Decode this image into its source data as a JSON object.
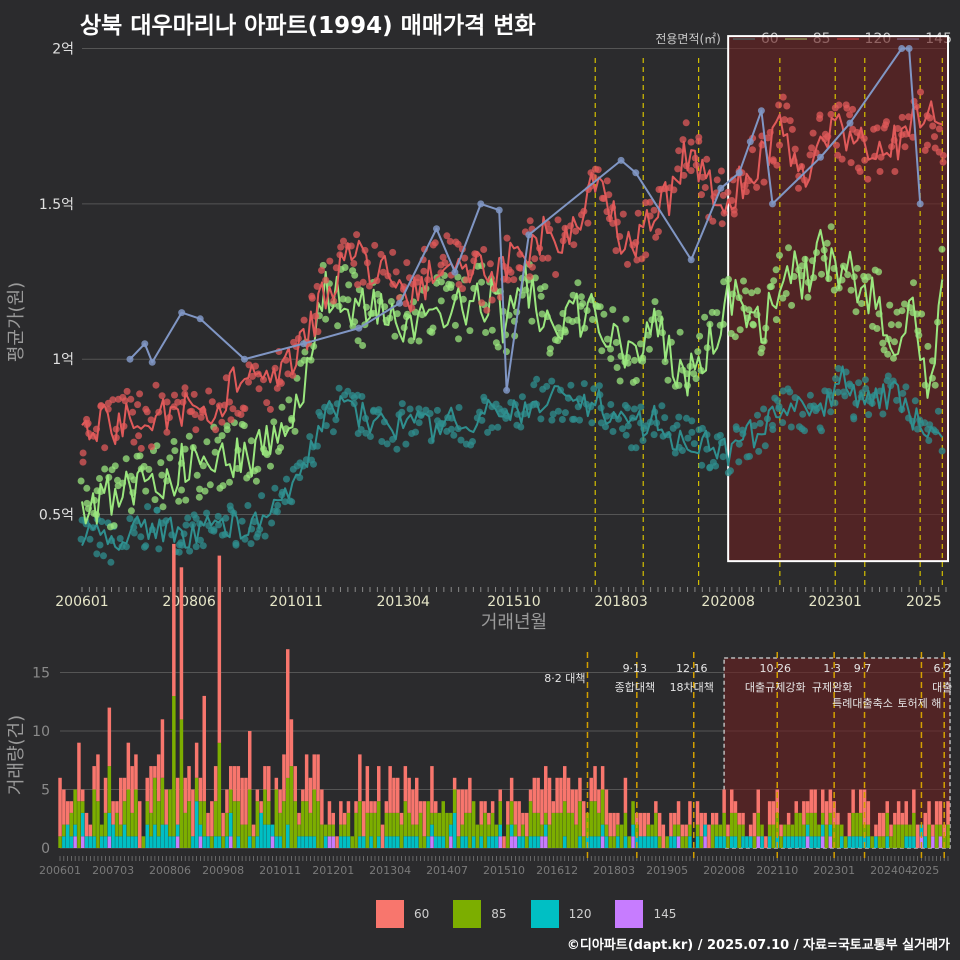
{
  "page": {
    "title": "상북 대우마리나 아파트(1994) 매매가격 변화",
    "caption": "©디아파트(dapt.kr) / 2025.07.10 / 자료=국토교통부 실거래가"
  },
  "colors": {
    "line_60": "#2f8f8f",
    "line_85": "#9ae67e",
    "line_120": "#e05a5a",
    "line_145": "#8096c4",
    "bar_60": "#f8766d",
    "bar_85": "#7cae00",
    "bar_120": "#00bfc4",
    "bar_145": "#c77cff",
    "policy_line": "#d4c000",
    "highlight": "#6b1f1f"
  },
  "chart_data": [
    {
      "type": "line",
      "title": "상북 대우마리나 아파트(1994) 매매가격 변화",
      "xlabel": "거래년월",
      "ylabel": "평균가(원)",
      "x_tick_labels": [
        "200601",
        "200806",
        "201011",
        "201304",
        "201510",
        "201803",
        "202008",
        "202301",
        "2025"
      ],
      "y_tick_labels": [
        "0.5억",
        "1억",
        "1.5억",
        "2억"
      ],
      "y_tick_values": [
        0.5,
        1.0,
        1.5,
        2.0
      ],
      "ylim": [
        0.27,
        2.05
      ],
      "xlim": [
        "2006-01",
        "2025-07"
      ],
      "legend_title": "전용면적(㎡)",
      "legend_position": "top-right",
      "grid": true,
      "policy_dates": [
        "2017-08",
        "2018-09",
        "2019-12",
        "2021-10",
        "2023-01",
        "2023-09",
        "2024-12",
        "2025-06"
      ],
      "highlight_range": [
        "2020-08",
        "2025-07"
      ],
      "highlight_y": [
        0.35,
        2.04
      ],
      "series": [
        {
          "name": "60",
          "points": [
            [
              "2006-01",
              0.45
            ],
            [
              "2006-06",
              0.42
            ],
            [
              "2006-11",
              0.4
            ],
            [
              "2007-04",
              0.45
            ],
            [
              "2007-09",
              0.46
            ],
            [
              "2008-02",
              0.45
            ],
            [
              "2008-07",
              0.43
            ],
            [
              "2008-12",
              0.45
            ],
            [
              "2009-05",
              0.47
            ],
            [
              "2009-10",
              0.46
            ],
            [
              "2010-03",
              0.5
            ],
            [
              "2010-08",
              0.55
            ],
            [
              "2011-01",
              0.63
            ],
            [
              "2011-06",
              0.8
            ],
            [
              "2011-11",
              0.85
            ],
            [
              "2012-04",
              0.82
            ],
            [
              "2012-09",
              0.8
            ],
            [
              "2013-02",
              0.78
            ],
            [
              "2013-07",
              0.8
            ],
            [
              "2013-12",
              0.78
            ],
            [
              "2014-05",
              0.8
            ],
            [
              "2014-10",
              0.78
            ],
            [
              "2015-03",
              0.82
            ],
            [
              "2015-08",
              0.8
            ],
            [
              "2016-01",
              0.85
            ],
            [
              "2016-06",
              0.88
            ],
            [
              "2016-11",
              0.86
            ],
            [
              "2017-04",
              0.85
            ],
            [
              "2017-09",
              0.86
            ],
            [
              "2018-02",
              0.8
            ],
            [
              "2018-07",
              0.78
            ],
            [
              "2018-12",
              0.82
            ],
            [
              "2019-05",
              0.76
            ],
            [
              "2019-10",
              0.74
            ],
            [
              "2020-03",
              0.72
            ],
            [
              "2020-08",
              0.7
            ],
            [
              "2021-01",
              0.75
            ],
            [
              "2021-06",
              0.78
            ],
            [
              "2021-11",
              0.85
            ],
            [
              "2022-04",
              0.83
            ],
            [
              "2022-09",
              0.82
            ],
            [
              "2023-02",
              0.95
            ],
            [
              "2023-07",
              0.86
            ],
            [
              "2023-12",
              0.89
            ],
            [
              "2024-05",
              0.88
            ],
            [
              "2024-10",
              0.82
            ],
            [
              "2025-03",
              0.78
            ],
            [
              "2025-06",
              0.76
            ]
          ]
        },
        {
          "name": "85",
          "points": [
            [
              "2006-01",
              0.5
            ],
            [
              "2006-06",
              0.55
            ],
            [
              "2006-11",
              0.58
            ],
            [
              "2007-04",
              0.6
            ],
            [
              "2007-09",
              0.62
            ],
            [
              "2008-02",
              0.64
            ],
            [
              "2008-07",
              0.66
            ],
            [
              "2008-12",
              0.67
            ],
            [
              "2009-05",
              0.69
            ],
            [
              "2009-10",
              0.68
            ],
            [
              "2010-03",
              0.75
            ],
            [
              "2010-08",
              0.8
            ],
            [
              "2011-01",
              0.92
            ],
            [
              "2011-06",
              1.2
            ],
            [
              "2011-11",
              1.22
            ],
            [
              "2012-04",
              1.15
            ],
            [
              "2012-09",
              1.18
            ],
            [
              "2013-02",
              1.1
            ],
            [
              "2013-07",
              1.12
            ],
            [
              "2013-12",
              1.18
            ],
            [
              "2014-05",
              1.15
            ],
            [
              "2014-10",
              1.18
            ],
            [
              "2015-03",
              1.2
            ],
            [
              "2015-08",
              1.1
            ],
            [
              "2016-01",
              1.25
            ],
            [
              "2016-06",
              1.15
            ],
            [
              "2016-11",
              1.1
            ],
            [
              "2017-04",
              1.15
            ],
            [
              "2017-09",
              1.12
            ],
            [
              "2018-02",
              1.05
            ],
            [
              "2018-07",
              1.0
            ],
            [
              "2018-12",
              1.1
            ],
            [
              "2019-05",
              1.0
            ],
            [
              "2019-10",
              0.95
            ],
            [
              "2020-03",
              1.05
            ],
            [
              "2020-08",
              1.2
            ],
            [
              "2021-01",
              1.15
            ],
            [
              "2021-06",
              1.1
            ],
            [
              "2021-11",
              1.3
            ],
            [
              "2022-04",
              1.25
            ],
            [
              "2022-09",
              1.35
            ],
            [
              "2023-02",
              1.3
            ],
            [
              "2023-07",
              1.25
            ],
            [
              "2023-12",
              1.2
            ],
            [
              "2024-05",
              1.05
            ],
            [
              "2024-10",
              1.15
            ],
            [
              "2025-03",
              0.9
            ],
            [
              "2025-06",
              1.25
            ]
          ]
        },
        {
          "name": "120",
          "points": [
            [
              "2006-01",
              0.76
            ],
            [
              "2006-06",
              0.78
            ],
            [
              "2006-11",
              0.8
            ],
            [
              "2007-04",
              0.8
            ],
            [
              "2007-09",
              0.82
            ],
            [
              "2008-02",
              0.85
            ],
            [
              "2008-07",
              0.86
            ],
            [
              "2008-12",
              0.85
            ],
            [
              "2009-05",
              0.9
            ],
            [
              "2009-10",
              0.92
            ],
            [
              "2010-03",
              0.92
            ],
            [
              "2010-08",
              0.95
            ],
            [
              "2011-01",
              1.05
            ],
            [
              "2011-06",
              1.2
            ],
            [
              "2011-11",
              1.3
            ],
            [
              "2012-04",
              1.32
            ],
            [
              "2012-09",
              1.28
            ],
            [
              "2013-02",
              1.25
            ],
            [
              "2013-07",
              1.2
            ],
            [
              "2013-12",
              1.3
            ],
            [
              "2014-05",
              1.35
            ],
            [
              "2014-10",
              1.3
            ],
            [
              "2015-03",
              1.25
            ],
            [
              "2015-08",
              1.3
            ],
            [
              "2016-01",
              1.35
            ],
            [
              "2016-06",
              1.4
            ],
            [
              "2016-11",
              1.35
            ],
            [
              "2017-04",
              1.45
            ],
            [
              "2017-09",
              1.6
            ],
            [
              "2018-02",
              1.4
            ],
            [
              "2018-07",
              1.38
            ],
            [
              "2018-12",
              1.45
            ],
            [
              "2019-05",
              1.55
            ],
            [
              "2019-10",
              1.7
            ],
            [
              "2020-03",
              1.55
            ],
            [
              "2020-08",
              1.5
            ],
            [
              "2021-01",
              1.6
            ],
            [
              "2021-06",
              1.65
            ],
            [
              "2021-11",
              1.75
            ],
            [
              "2022-04",
              1.6
            ],
            [
              "2022-09",
              1.7
            ],
            [
              "2023-02",
              1.75
            ],
            [
              "2023-07",
              1.7
            ],
            [
              "2023-12",
              1.65
            ],
            [
              "2024-05",
              1.7
            ],
            [
              "2024-10",
              1.75
            ],
            [
              "2025-03",
              1.78
            ],
            [
              "2025-06",
              1.7
            ]
          ]
        },
        {
          "name": "145",
          "points": [
            [
              "2007-02",
              1.0
            ],
            [
              "2007-06",
              1.05
            ],
            [
              "2007-08",
              0.99
            ],
            [
              "2008-04",
              1.15
            ],
            [
              "2008-09",
              1.13
            ],
            [
              "2009-09",
              1.0
            ],
            [
              "2011-01",
              1.05
            ],
            [
              "2012-04",
              1.1
            ],
            [
              "2013-03",
              1.18
            ],
            [
              "2014-01",
              1.42
            ],
            [
              "2014-06",
              1.28
            ],
            [
              "2015-01",
              1.5
            ],
            [
              "2015-06",
              1.48
            ],
            [
              "2015-08",
              0.9
            ],
            [
              "2016-02",
              1.4
            ],
            [
              "2018-03",
              1.64
            ],
            [
              "2018-07",
              1.6
            ],
            [
              "2019-10",
              1.32
            ],
            [
              "2020-06",
              1.55
            ],
            [
              "2020-11",
              1.6
            ],
            [
              "2021-02",
              1.7
            ],
            [
              "2021-05",
              1.8
            ],
            [
              "2021-08",
              1.5
            ],
            [
              "2022-09",
              1.65
            ],
            [
              "2023-05",
              1.76
            ],
            [
              "2024-07",
              2.0
            ],
            [
              "2024-09",
              2.0
            ],
            [
              "2024-12",
              1.5
            ]
          ]
        }
      ]
    },
    {
      "type": "bar",
      "ylabel": "거래량(건)",
      "x_tick_labels": [
        "200601",
        "200703",
        "200806",
        "200908",
        "201011",
        "201201",
        "201304",
        "201407",
        "201510",
        "201612",
        "201803",
        "201905",
        "202008",
        "202110",
        "202301",
        "202404",
        "2025"
      ],
      "y_tick_labels": [
        "0",
        "5",
        "10",
        "15"
      ],
      "y_tick_values": [
        0,
        5,
        10,
        15
      ],
      "ylim": [
        0,
        16.5
      ],
      "policy_labels": [
        {
          "date": "2017-08",
          "text": "8·2 대책",
          "text2": ""
        },
        {
          "date": "2018-09",
          "text": "9·13",
          "text2": "종합대책"
        },
        {
          "date": "2019-12",
          "text": "12·16",
          "text2": "18차대책"
        },
        {
          "date": "2021-10",
          "text": "10·26",
          "text2": "대출규제강화"
        },
        {
          "date": "2023-01",
          "text": "1·3",
          "text2": "규제완화"
        },
        {
          "date": "2023-09",
          "text": "9·7",
          "text2": "특례대출축소"
        },
        {
          "date": "2024-12",
          "text": "",
          "text2": "토허제 해"
        },
        {
          "date": "2025-06",
          "text": "6·2",
          "text2": "대출"
        }
      ],
      "legend_position": "bottom",
      "series": [
        {
          "name": "60",
          "monthly_avg": 1.6,
          "peaks": [
            [
              "2009-07",
              16
            ],
            [
              "2008-07",
              13
            ],
            [
              "2008-09",
              13
            ],
            [
              "2011-01",
              11
            ],
            [
              "2009-03",
              9
            ]
          ]
        },
        {
          "name": "85",
          "monthly_avg": 1.4,
          "peaks": [
            [
              "2009-07",
              8
            ],
            [
              "2008-07",
              12
            ],
            [
              "2008-09",
              11
            ],
            [
              "2011-02",
              7
            ]
          ]
        },
        {
          "name": "120",
          "monthly_avg": 0.6,
          "peaks": [
            [
              "2009-01",
              4
            ],
            [
              "2010-06",
              3
            ],
            [
              "2014-09",
              3
            ]
          ]
        },
        {
          "name": "145",
          "monthly_avg": 0.08,
          "peaks": [
            [
              "2007-02",
              1
            ],
            [
              "2021-05",
              1
            ]
          ]
        }
      ]
    }
  ]
}
